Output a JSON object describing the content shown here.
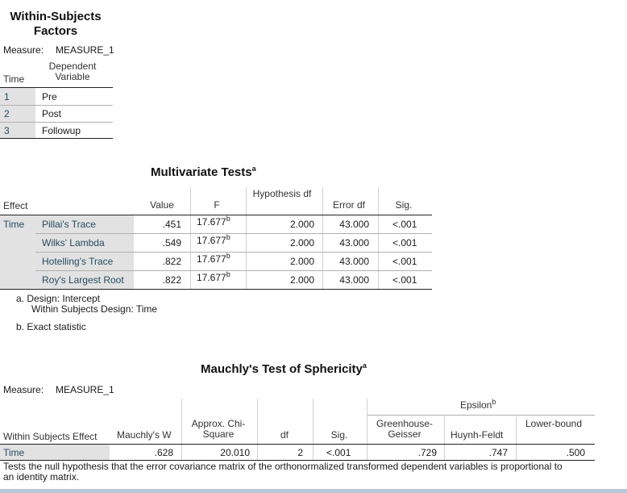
{
  "within_subjects_factors": {
    "title": "Within-Subjects Factors",
    "measure_label": "Measure:",
    "measure_value": "MEASURE_1",
    "header_time": "Time",
    "header_dependent": "Dependent Variable",
    "rows": [
      {
        "time": "1",
        "variable": "Pre"
      },
      {
        "time": "2",
        "variable": "Post"
      },
      {
        "time": "3",
        "variable": "Followup"
      }
    ]
  },
  "multivariate_tests": {
    "title": "Multivariate Tests",
    "title_sup": "a",
    "headers": {
      "effect": "Effect",
      "value": "Value",
      "f": "F",
      "hypothesis_df": "Hypothesis df",
      "error_df": "Error df",
      "sig": "Sig."
    },
    "effect": "Time",
    "rows": [
      {
        "test": "Pillai's Trace",
        "value": ".451",
        "f": "17.677",
        "f_sup": "b",
        "hyp_df": "2.000",
        "err_df": "43.000",
        "sig": "<.001"
      },
      {
        "test": "Wilks' Lambda",
        "value": ".549",
        "f": "17.677",
        "f_sup": "b",
        "hyp_df": "2.000",
        "err_df": "43.000",
        "sig": "<.001"
      },
      {
        "test": "Hotelling's Trace",
        "value": ".822",
        "f": "17.677",
        "f_sup": "b",
        "hyp_df": "2.000",
        "err_df": "43.000",
        "sig": "<.001"
      },
      {
        "test": "Roy's Largest Root",
        "value": ".822",
        "f": "17.677",
        "f_sup": "b",
        "hyp_df": "2.000",
        "err_df": "43.000",
        "sig": "<.001"
      }
    ],
    "footnote_a_line1": "a. Design: Intercept",
    "footnote_a_line2": "Within Subjects Design: Time",
    "footnote_b": "b. Exact statistic"
  },
  "mauchly": {
    "title": "Mauchly's Test of Sphericity",
    "title_sup": "a",
    "measure_label": "Measure:",
    "measure_value": "MEASURE_1",
    "epsilon_label": "Epsilon",
    "epsilon_sup": "b",
    "headers": {
      "effect": "Within Subjects Effect",
      "mauchly_w": "Mauchly's W",
      "chi": "Approx. Chi-Square",
      "df": "df",
      "sig": "Sig.",
      "gg": "Greenhouse-Geisser",
      "hf": "Huynh-Feldt",
      "lb": "Lower-bound"
    },
    "row": {
      "effect": "Time",
      "w": ".628",
      "chi": "20.010",
      "df": "2",
      "sig": "<.001",
      "gg": ".729",
      "hf": ".747",
      "lb": ".500"
    },
    "footnote": "Tests the null hypothesis that the error covariance matrix of the orthonormalized transformed dependent variables is proportional to an identity matrix."
  }
}
